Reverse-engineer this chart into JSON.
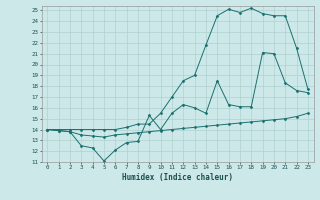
{
  "xlabel": "Humidex (Indice chaleur)",
  "bg_color": "#cde8e8",
  "line_color": "#1a7070",
  "grid_color": "#b0d0d0",
  "xlim": [
    -0.5,
    23.5
  ],
  "ylim": [
    11,
    25.4
  ],
  "xticks": [
    0,
    1,
    2,
    3,
    4,
    5,
    6,
    7,
    8,
    9,
    10,
    11,
    12,
    13,
    14,
    15,
    16,
    17,
    18,
    19,
    20,
    21,
    22,
    23
  ],
  "yticks": [
    11,
    12,
    13,
    14,
    15,
    16,
    17,
    18,
    19,
    20,
    21,
    22,
    23,
    24,
    25
  ],
  "line1_x": [
    0,
    1,
    2,
    3,
    4,
    5,
    6,
    7,
    8,
    9,
    10,
    11,
    12,
    13,
    14,
    15,
    16,
    17,
    18,
    19,
    20,
    21,
    22,
    23
  ],
  "line1_y": [
    14.0,
    13.9,
    13.8,
    13.5,
    13.4,
    13.3,
    13.5,
    13.6,
    13.7,
    13.8,
    13.9,
    14.0,
    14.1,
    14.2,
    14.3,
    14.4,
    14.5,
    14.6,
    14.7,
    14.8,
    14.9,
    15.0,
    15.2,
    15.5
  ],
  "line2_x": [
    0,
    1,
    2,
    3,
    4,
    5,
    6,
    7,
    8,
    9,
    10,
    11,
    12,
    13,
    14,
    15,
    16,
    17,
    18,
    19,
    20,
    21,
    22,
    23
  ],
  "line2_y": [
    14.0,
    13.9,
    13.8,
    12.5,
    12.3,
    11.1,
    12.1,
    12.8,
    12.9,
    15.3,
    14.0,
    15.5,
    16.3,
    16.0,
    15.5,
    18.5,
    16.3,
    16.1,
    16.1,
    21.1,
    21.0,
    18.3,
    17.6,
    17.4
  ],
  "line3_x": [
    0,
    1,
    2,
    3,
    4,
    5,
    6,
    7,
    8,
    9,
    10,
    11,
    12,
    13,
    14,
    15,
    16,
    17,
    18,
    19,
    20,
    21,
    22,
    23
  ],
  "line3_y": [
    14.0,
    14.0,
    14.0,
    14.0,
    14.0,
    14.0,
    14.0,
    14.2,
    14.5,
    14.5,
    15.5,
    17.0,
    18.5,
    19.0,
    21.8,
    24.5,
    25.1,
    24.8,
    25.2,
    24.7,
    24.5,
    24.5,
    21.5,
    17.7
  ]
}
